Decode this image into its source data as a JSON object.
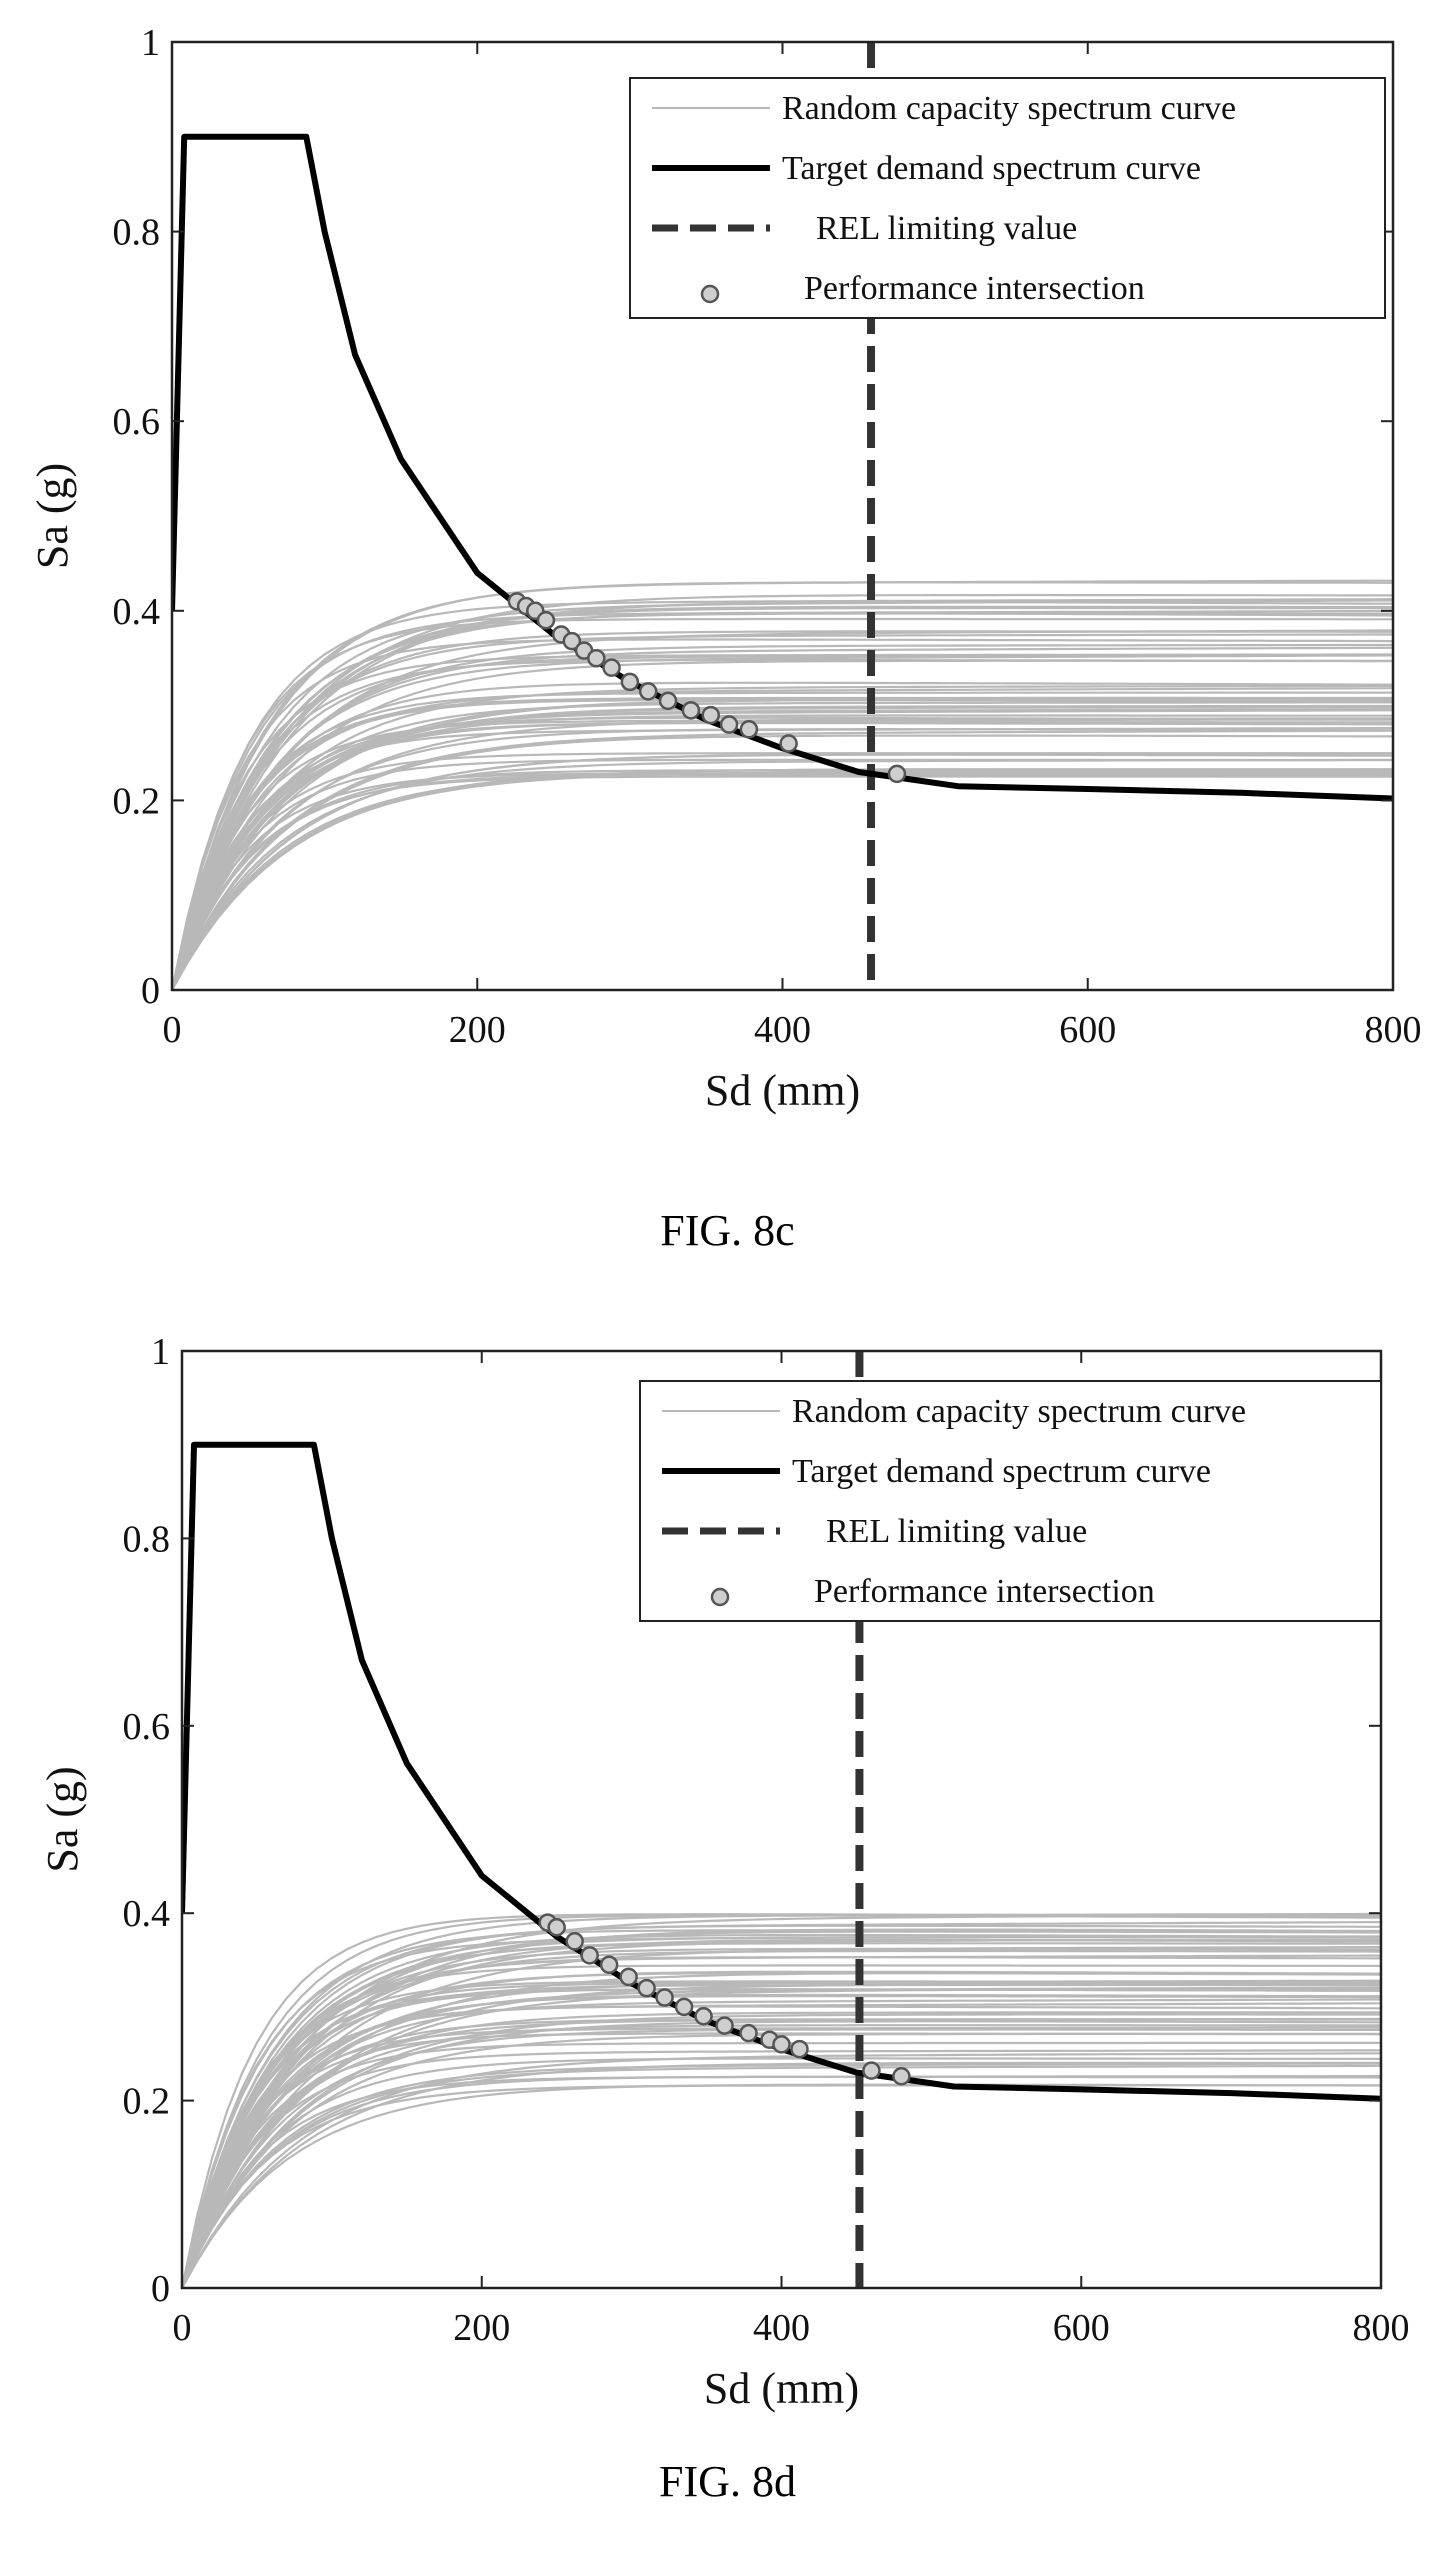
{
  "chart_data": [
    {
      "id": "8c",
      "type": "line",
      "caption": "FIG. 8c",
      "xlabel": "Sd (mm)",
      "ylabel": "Sa (g)",
      "xlim": [
        0,
        800
      ],
      "ylim": [
        0,
        1
      ],
      "xticks": [
        0,
        200,
        400,
        600,
        800
      ],
      "yticks": [
        0,
        0.2,
        0.4,
        0.6,
        0.8,
        1
      ],
      "xtick_labels": [
        "0",
        "200",
        "400",
        "600",
        "800"
      ],
      "ytick_labels": [
        "0",
        "0.2",
        "0.4",
        "0.6",
        "0.8",
        "1"
      ],
      "legend": {
        "placement": "top-right",
        "entries": [
          "Random capacity spectrum curve",
          "Target demand spectrum curve",
          "REL limiting value",
          "Performance intersection"
        ]
      },
      "colors": {
        "capacity": "#b8b8b8",
        "demand": "#000000",
        "rel": "#333333",
        "marker": "#555555"
      },
      "demand_curve": {
        "points": [
          [
            0,
            0.4
          ],
          [
            8,
            0.9
          ],
          [
            88,
            0.9
          ],
          [
            100,
            0.8
          ],
          [
            120,
            0.67
          ],
          [
            150,
            0.56
          ],
          [
            200,
            0.44
          ],
          [
            250,
            0.375
          ],
          [
            300,
            0.325
          ],
          [
            350,
            0.285
          ],
          [
            400,
            0.255
          ],
          [
            450,
            0.23
          ],
          [
            515,
            0.215
          ],
          [
            600,
            0.212
          ],
          [
            700,
            0.208
          ],
          [
            800,
            0.202
          ]
        ]
      },
      "rel_limit": 458,
      "capacity_curves": {
        "count": 60,
        "plateau_range": [
          0.225,
          0.435
        ],
        "yield_sd_range": [
          130,
          230
        ]
      },
      "intersections": [
        [
          226,
          0.41
        ],
        [
          232,
          0.405
        ],
        [
          238,
          0.4
        ],
        [
          245,
          0.39
        ],
        [
          255,
          0.375
        ],
        [
          262,
          0.368
        ],
        [
          270,
          0.358
        ],
        [
          278,
          0.35
        ],
        [
          288,
          0.34
        ],
        [
          300,
          0.325
        ],
        [
          312,
          0.315
        ],
        [
          325,
          0.305
        ],
        [
          340,
          0.295
        ],
        [
          353,
          0.29
        ],
        [
          365,
          0.28
        ],
        [
          378,
          0.275
        ],
        [
          404,
          0.26
        ],
        [
          475,
          0.228
        ]
      ]
    },
    {
      "id": "8d",
      "type": "line",
      "caption": "FIG. 8d",
      "xlabel": "Sd (mm)",
      "ylabel": "Sa (g)",
      "xlim": [
        0,
        800
      ],
      "ylim": [
        0,
        1
      ],
      "xticks": [
        0,
        200,
        400,
        600,
        800
      ],
      "yticks": [
        0,
        0.2,
        0.4,
        0.6,
        0.8,
        1
      ],
      "xtick_labels": [
        "0",
        "200",
        "400",
        "600",
        "800"
      ],
      "ytick_labels": [
        "0",
        "0.2",
        "0.4",
        "0.6",
        "0.8",
        "1"
      ],
      "legend": {
        "placement": "top-right",
        "entries": [
          "Random capacity spectrum curve",
          "Target demand spectrum curve",
          "REL limiting value",
          "Performance intersection"
        ]
      },
      "colors": {
        "capacity": "#b8b8b8",
        "demand": "#000000",
        "rel": "#333333",
        "marker": "#555555"
      },
      "demand_curve": {
        "points": [
          [
            0,
            0.4
          ],
          [
            8,
            0.9
          ],
          [
            88,
            0.9
          ],
          [
            100,
            0.8
          ],
          [
            120,
            0.67
          ],
          [
            150,
            0.56
          ],
          [
            200,
            0.44
          ],
          [
            250,
            0.375
          ],
          [
            300,
            0.325
          ],
          [
            350,
            0.285
          ],
          [
            400,
            0.255
          ],
          [
            450,
            0.23
          ],
          [
            515,
            0.215
          ],
          [
            600,
            0.212
          ],
          [
            700,
            0.208
          ],
          [
            800,
            0.202
          ]
        ]
      },
      "rel_limit": 452,
      "capacity_curves": {
        "count": 60,
        "plateau_range": [
          0.215,
          0.405
        ],
        "yield_sd_range": [
          140,
          240
        ]
      },
      "intersections": [
        [
          244,
          0.39
        ],
        [
          250,
          0.385
        ],
        [
          262,
          0.37
        ],
        [
          272,
          0.355
        ],
        [
          285,
          0.345
        ],
        [
          298,
          0.332
        ],
        [
          310,
          0.32
        ],
        [
          322,
          0.31
        ],
        [
          335,
          0.3
        ],
        [
          348,
          0.29
        ],
        [
          362,
          0.28
        ],
        [
          378,
          0.272
        ],
        [
          392,
          0.265
        ],
        [
          400,
          0.26
        ],
        [
          412,
          0.255
        ],
        [
          460,
          0.232
        ],
        [
          480,
          0.226
        ]
      ]
    }
  ]
}
